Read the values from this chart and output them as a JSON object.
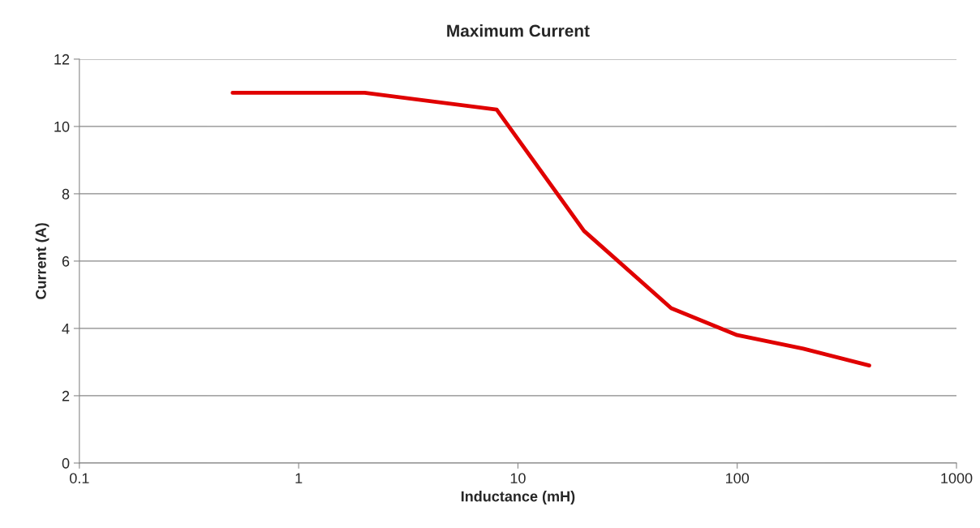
{
  "chart_data": {
    "type": "line",
    "title": "Maximum Current",
    "xlabel": "Inductance (mH)",
    "ylabel": "Current (A)",
    "x": [
      0.5,
      2,
      8,
      20,
      50,
      100,
      200,
      400
    ],
    "series": [
      {
        "color": "#e00000",
        "values": [
          11,
          11,
          10.5,
          6.9,
          4.6,
          3.8,
          3.4,
          2.9
        ]
      }
    ],
    "log": "x",
    "xlim": [
      0.1,
      1000
    ],
    "xticks": [
      0.1,
      1,
      10,
      100,
      1000
    ],
    "ylim": [
      0,
      12
    ],
    "yticks": [
      0,
      2,
      4,
      6,
      8,
      10,
      12
    ],
    "grid": "y",
    "marker": "none",
    "line_style": "solid"
  }
}
